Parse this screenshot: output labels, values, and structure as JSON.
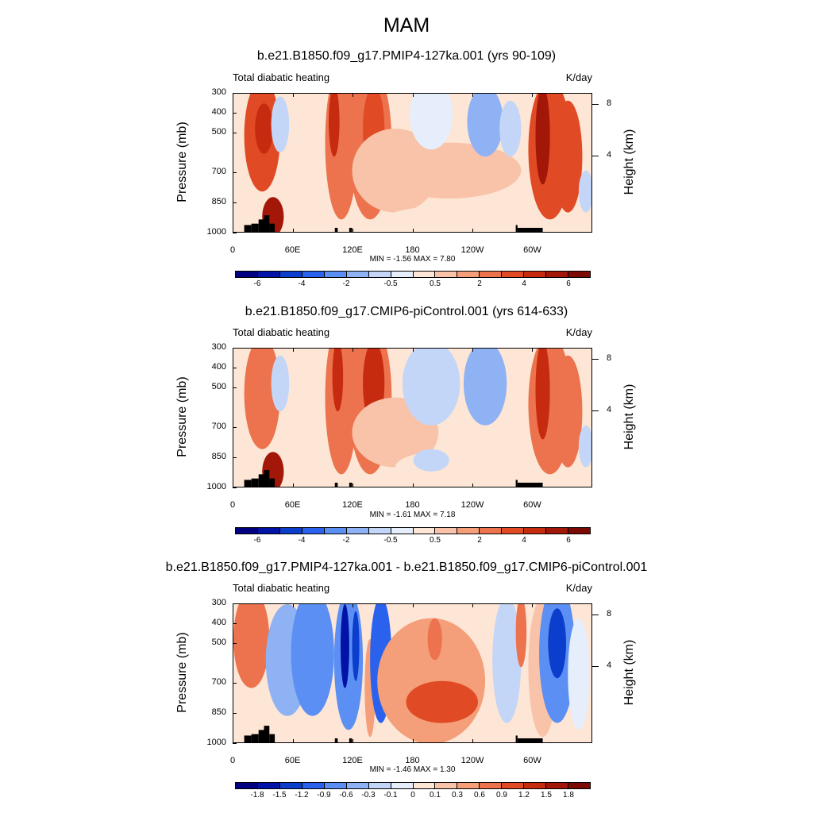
{
  "main_title": "MAM",
  "colors": {
    "abs_scale": [
      "#000080",
      "#0013a6",
      "#0b3ecc",
      "#2a62ee",
      "#5b8ff3",
      "#8fb2f5",
      "#c3d6f7",
      "#e6eefb",
      "#fde6d6",
      "#f8c3a8",
      "#f49e7a",
      "#ec734d",
      "#e04a24",
      "#c72b0f",
      "#a21708",
      "#7a0a03"
    ],
    "diff_scale": [
      "#000080",
      "#0013a6",
      "#0b3ecc",
      "#2a62ee",
      "#5b8ff3",
      "#8fb2f5",
      "#c3d6f7",
      "#e6eefb",
      "#fde6d6",
      "#f8c3a8",
      "#f49e7a",
      "#ec734d",
      "#e04a24",
      "#c72b0f",
      "#a21708",
      "#7a0a03"
    ],
    "terrain": "#000000"
  },
  "chart_data": [
    {
      "type": "heatmap",
      "title": "b.e21.B1850.f09_g17.PMIP4-127ka.001 (yrs 90-109)",
      "left_label": "Total diabatic heating",
      "right_label": "K/day",
      "ylabel": "Pressure (mb)",
      "y2label": "Height (km)",
      "yticks": [
        "300",
        "400",
        "500",
        "700",
        "850",
        "1000"
      ],
      "y2ticks": [
        "8",
        "4"
      ],
      "xticks": [
        "0",
        "60E",
        "120E",
        "180",
        "120W",
        "60W"
      ],
      "min_label": "MIN =  -1.56  MAX =  7.80",
      "colorbar_labels": [
        "-6",
        "-4",
        "-2",
        "-0.5",
        "0.5",
        "2",
        "4",
        "6"
      ],
      "colorbar_scale": "abs_scale"
    },
    {
      "type": "heatmap",
      "title": "b.e21.B1850.f09_g17.CMIP6-piControl.001 (yrs 614-633)",
      "left_label": "Total diabatic heating",
      "right_label": "K/day",
      "ylabel": "Pressure (mb)",
      "y2label": "Height (km)",
      "yticks": [
        "300",
        "400",
        "500",
        "700",
        "850",
        "1000"
      ],
      "y2ticks": [
        "8",
        "4"
      ],
      "xticks": [
        "0",
        "60E",
        "120E",
        "180",
        "120W",
        "60W"
      ],
      "min_label": "MIN =  -1.61  MAX =  7.18",
      "colorbar_labels": [
        "-6",
        "-4",
        "-2",
        "-0.5",
        "0.5",
        "2",
        "4",
        "6"
      ],
      "colorbar_scale": "abs_scale"
    },
    {
      "type": "heatmap",
      "title": "b.e21.B1850.f09_g17.PMIP4-127ka.001 - b.e21.B1850.f09_g17.CMIP6-piControl.001",
      "left_label": "Total diabatic heating",
      "right_label": "K/day",
      "ylabel": "Pressure (mb)",
      "y2label": "Height (km)",
      "yticks": [
        "300",
        "400",
        "500",
        "700",
        "850",
        "1000"
      ],
      "y2ticks": [
        "8",
        "4"
      ],
      "xticks": [
        "0",
        "60E",
        "120E",
        "180",
        "120W",
        "60W"
      ],
      "min_label": "MIN =  -1.46  MAX =  1.30",
      "colorbar_labels": [
        "-1.8",
        "-1.5",
        "-1.2",
        "-0.9",
        "-0.6",
        "-0.3",
        "-0.1",
        "0",
        "0.1",
        "0.3",
        "0.6",
        "0.9",
        "1.2",
        "1.5",
        "1.8"
      ],
      "colorbar_scale": "diff_scale"
    }
  ]
}
